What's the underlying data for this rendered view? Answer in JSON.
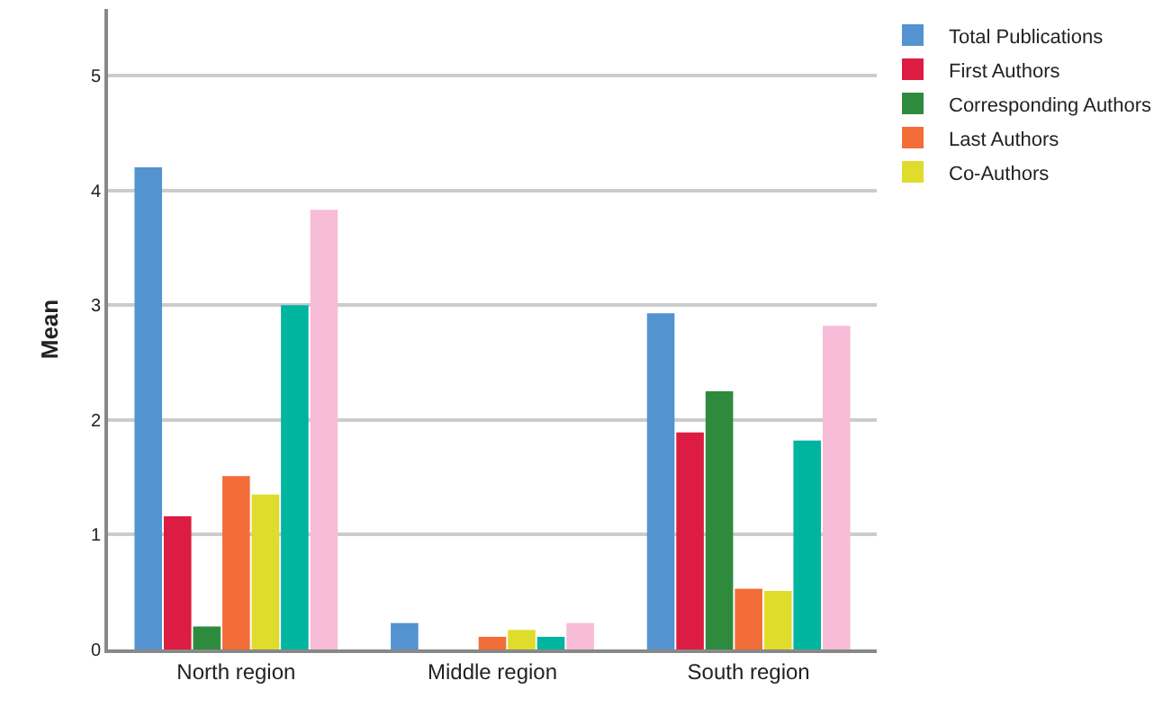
{
  "chart_data": {
    "type": "bar",
    "ylabel": "Mean",
    "categories": [
      "North region",
      "Middle region",
      "South region"
    ],
    "series": [
      {
        "name": "Total Publications",
        "color": "#5393d0",
        "values": [
          4.2,
          0.23,
          2.93
        ]
      },
      {
        "name": "First Authors",
        "color": "#dc1c42",
        "values": [
          1.16,
          0,
          1.89
        ]
      },
      {
        "name": "Corresponding Authors",
        "color": "#2e8b3e",
        "values": [
          0.2,
          0,
          2.25
        ]
      },
      {
        "name": "Last Authors",
        "color": "#f26d38",
        "values": [
          1.51,
          0.11,
          0.53
        ]
      },
      {
        "name": "Co-Authors",
        "color": "#e0dc2c",
        "values": [
          1.35,
          0.17,
          0.51
        ]
      },
      {
        "color": "#00b5a0",
        "values": [
          3.0,
          0.11,
          1.82
        ]
      },
      {
        "color": "#f7bcd8",
        "values": [
          3.83,
          0.23,
          2.82
        ]
      }
    ],
    "ylim": [
      0,
      5.58
    ],
    "yticks": [
      0,
      1,
      2,
      3,
      4,
      5
    ],
    "grid": "y",
    "legend": "top right"
  }
}
